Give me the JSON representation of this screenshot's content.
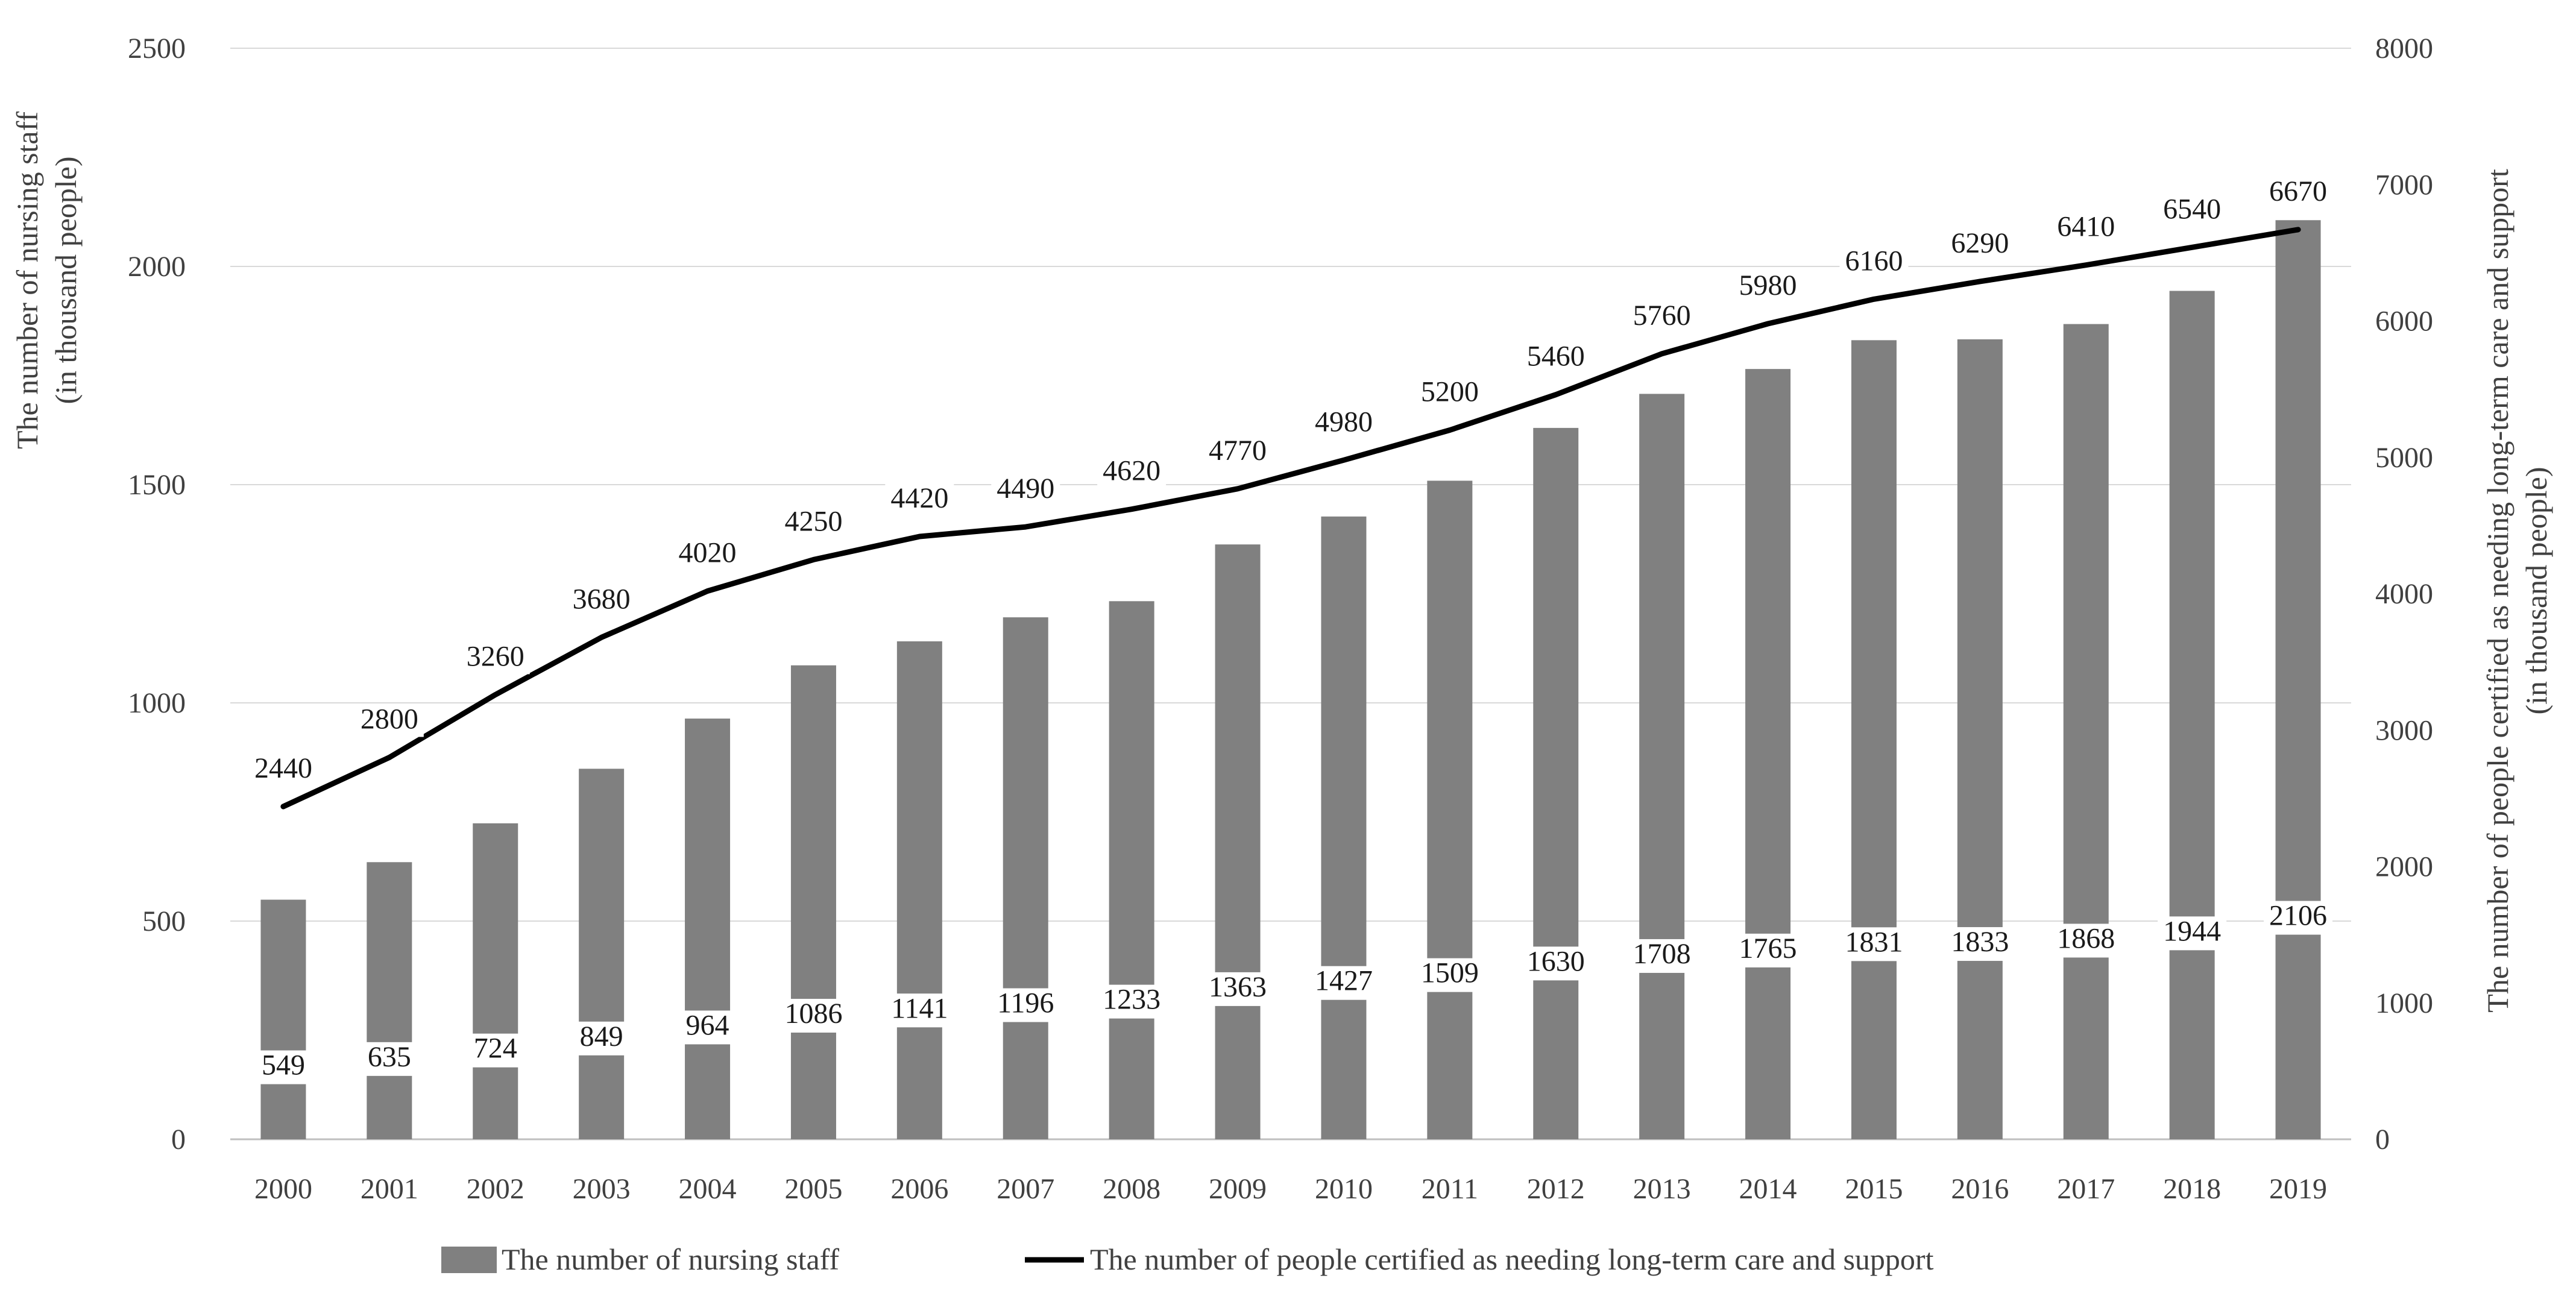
{
  "chart_data": {
    "type": "bar+line",
    "categories": [
      "2000",
      "2001",
      "2002",
      "2003",
      "2004",
      "2005",
      "2006",
      "2007",
      "2008",
      "2009",
      "2010",
      "2011",
      "2012",
      "2013",
      "2014",
      "2015",
      "2016",
      "2017",
      "2018",
      "2019"
    ],
    "series": [
      {
        "name": "The number of nursing staff",
        "type": "bar",
        "axis": "left",
        "color": "#808080",
        "values": [
          549,
          635,
          724,
          849,
          964,
          1086,
          1141,
          1196,
          1233,
          1363,
          1427,
          1509,
          1630,
          1708,
          1765,
          1831,
          1833,
          1868,
          1944,
          2106
        ],
        "labels": [
          "549",
          "635",
          "724",
          "849",
          "964",
          "1086",
          "1141",
          "1196",
          "1233",
          "1363",
          "1427",
          "1509",
          "1630",
          "1708",
          "1765",
          "1831",
          "1833",
          "1868",
          "1944",
          "2106"
        ]
      },
      {
        "name": "The number of people certified as needing long-term care and support",
        "type": "line",
        "axis": "right",
        "color": "#000000",
        "values": [
          2440,
          2800,
          3260,
          3680,
          4020,
          4250,
          4420,
          4490,
          4620,
          4770,
          4980,
          5200,
          5460,
          5760,
          5980,
          6160,
          6290,
          6410,
          6540,
          6670
        ],
        "labels": [
          "2440",
          "2800",
          "3260",
          "3680",
          "4020",
          "4250",
          "4420",
          "4490",
          "4620",
          "4770",
          "4980",
          "5200",
          "5460",
          "5760",
          "5980",
          "6160",
          "6290",
          "6410",
          "6540",
          "6670"
        ]
      }
    ],
    "left_axis": {
      "title_line1": "The number of nursing staff",
      "title_line2": "(in thousand people)",
      "ylim": [
        0,
        2500
      ],
      "ticks": [
        0,
        500,
        1000,
        1500,
        2000,
        2500
      ],
      "tick_labels": [
        "0",
        "500",
        "1000",
        "1500",
        "2000",
        "2500"
      ]
    },
    "right_axis": {
      "title_line1": "The number of people certified as needing long-term care and support",
      "title_line2": "(in thousand people)",
      "ylim": [
        0,
        8000
      ],
      "ticks": [
        0,
        1000,
        2000,
        3000,
        4000,
        5000,
        6000,
        7000,
        8000
      ],
      "tick_labels": [
        "0",
        "1000",
        "2000",
        "3000",
        "4000",
        "5000",
        "6000",
        "7000",
        "8000"
      ]
    },
    "grid": true,
    "legend_position": "bottom"
  }
}
